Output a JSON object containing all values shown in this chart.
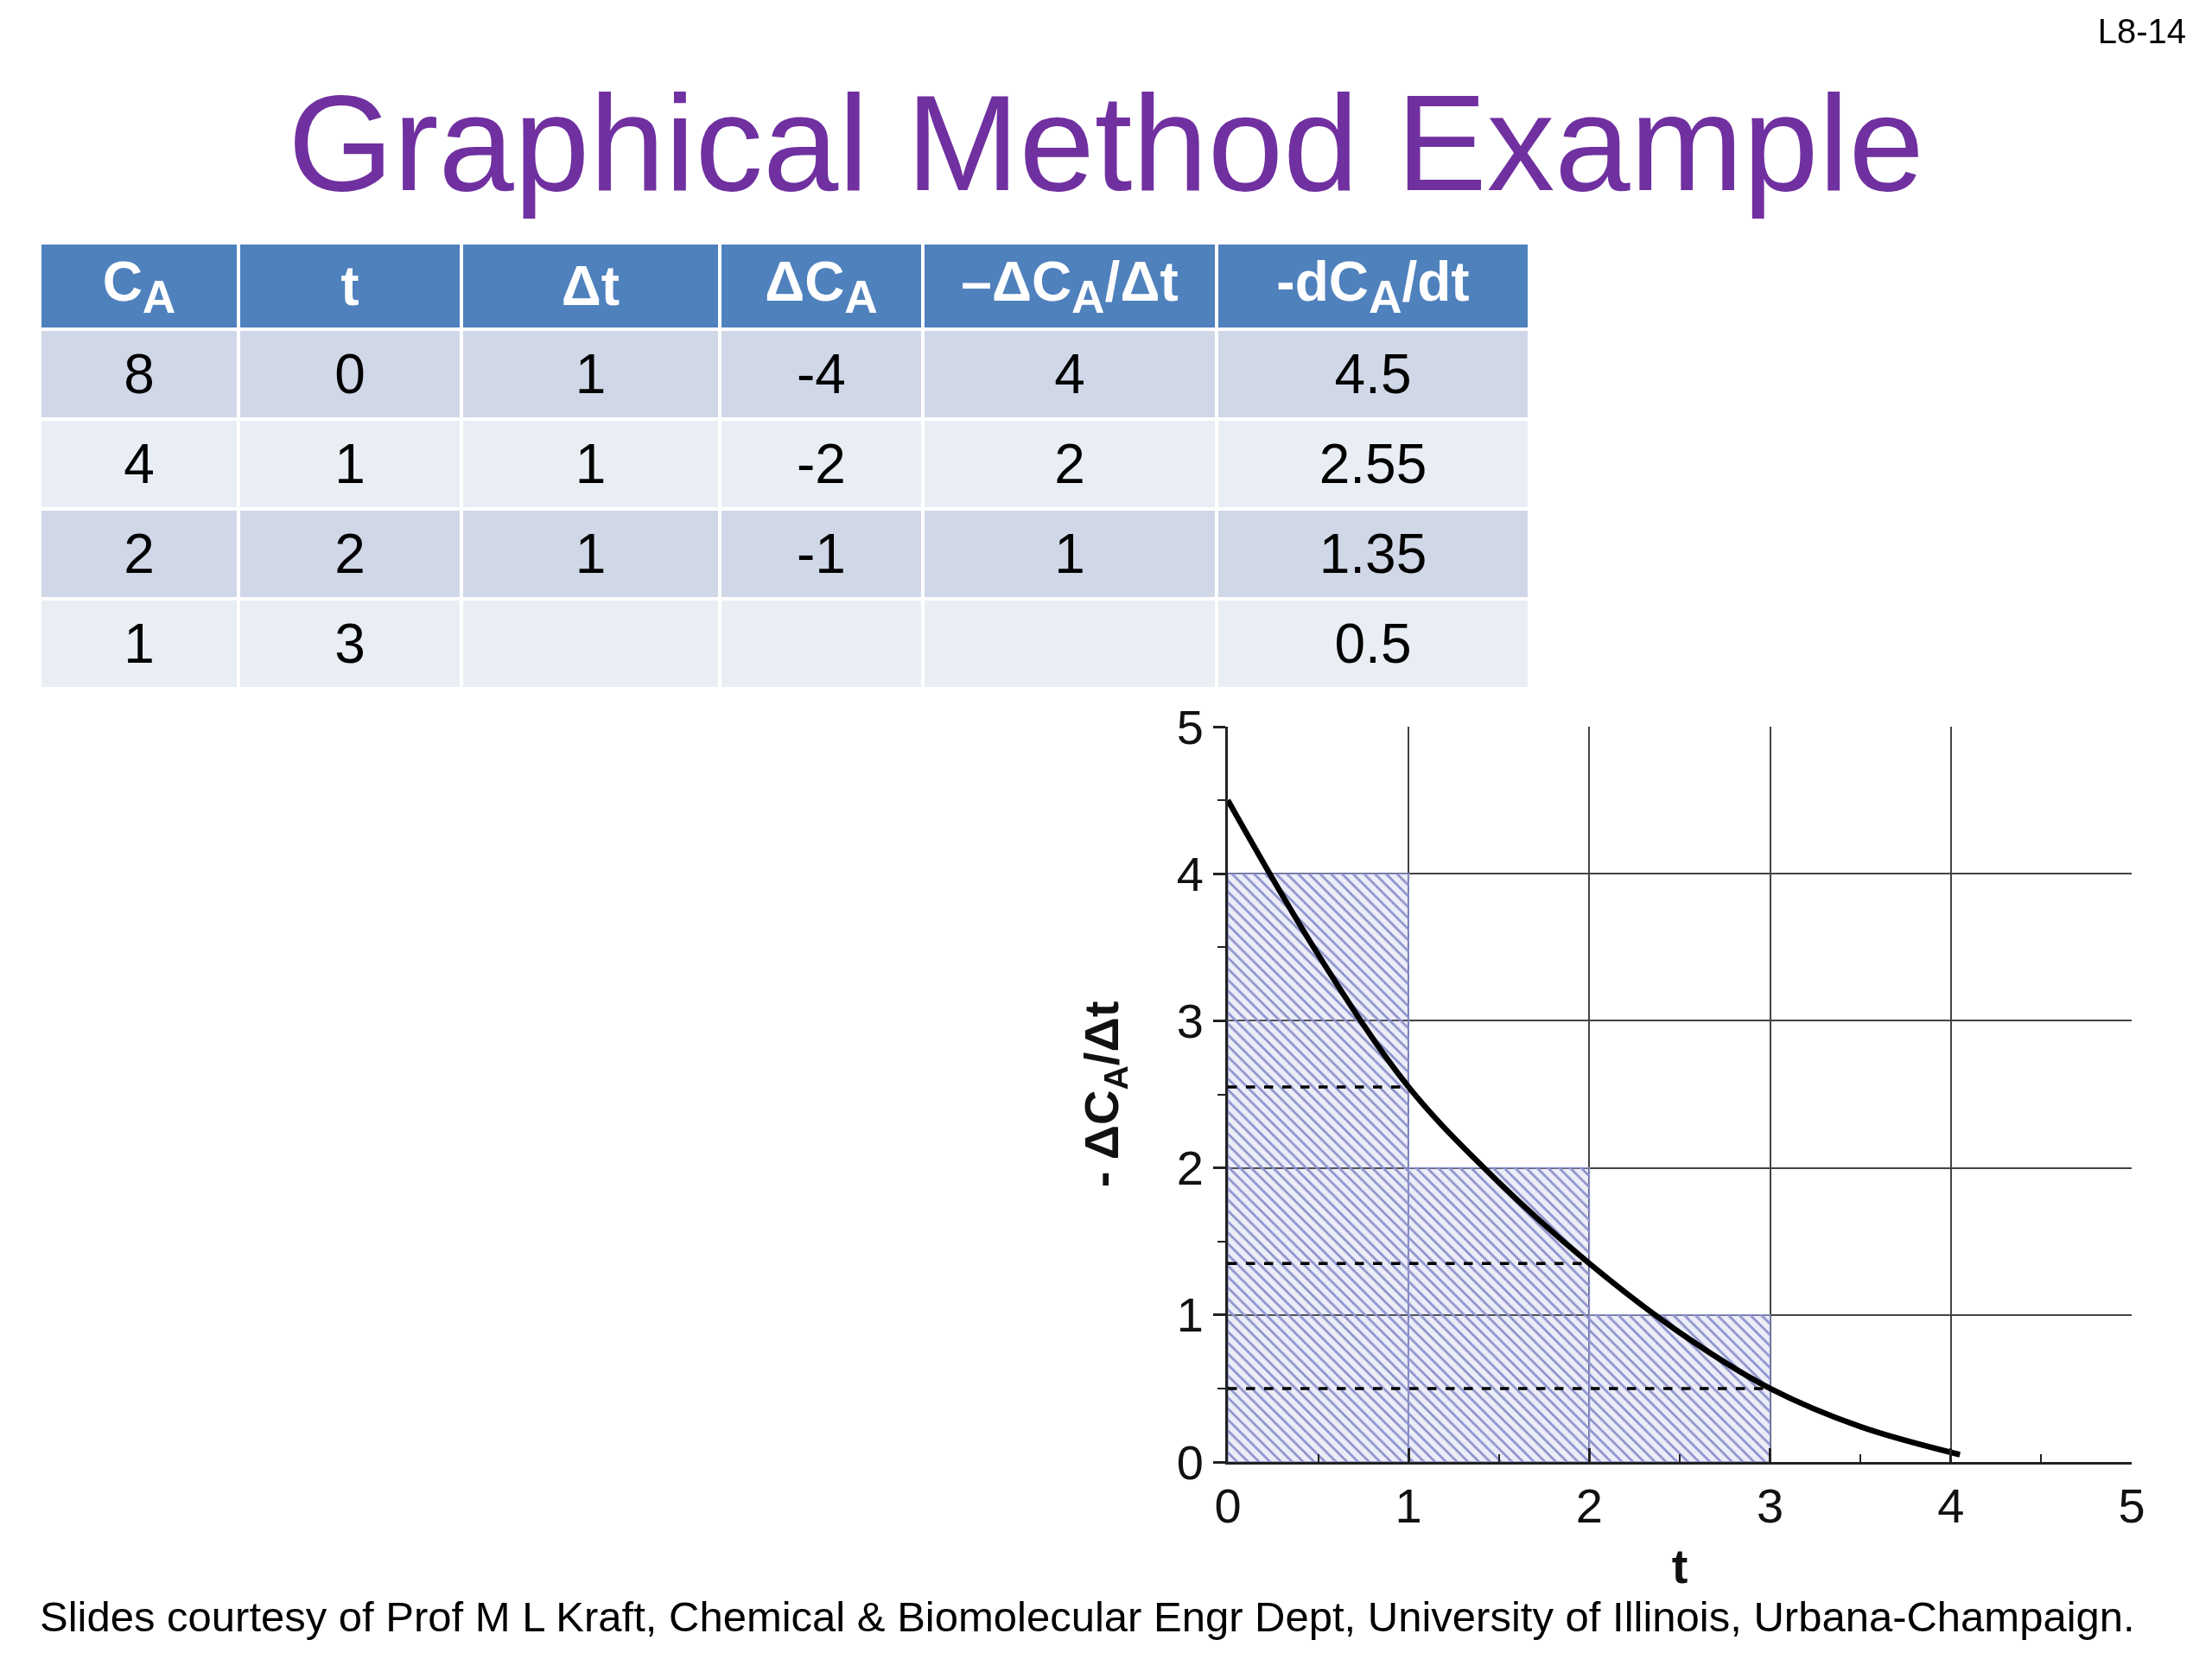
{
  "chart_data": [
    {
      "type": "other",
      "title": "Graphical Method Example",
      "annotations": [
        "L8-14",
        "Slides courtesy of Prof M L Kraft, Chemical & Biomolecular Engr Dept, University of Illinois, Urbana-Champaign."
      ],
      "categories": [
        "C$_{A}$",
        "t",
        "Δt",
        "ΔC$_{A}$",
        "–ΔC$_{A}$/Δt",
        "-dC$_{A}$/dt"
      ],
      "series": [
        {
          "color": "#d0d8e8",
          "values": [
            8,
            0,
            1,
            -4,
            4,
            4.5
          ]
        },
        {
          "color": "#e9edf4",
          "values": [
            4,
            1,
            1,
            -2,
            2,
            2.55
          ]
        },
        {
          "color": "#d0d8e8",
          "values": [
            2,
            2,
            1,
            -1,
            1,
            1.35
          ]
        },
        {
          "color": "#e9edf4",
          "values": [
            1,
            3,
            null,
            null,
            null,
            0.5
          ]
        }
      ],
      "data_labels": true
    },
    {
      "type": "histogram",
      "xlabel": "t",
      "ylabel": "- ΔC$_{A}$/Δt",
      "xlim": [
        0,
        5
      ],
      "ylim": [
        0,
        5
      ],
      "xticks": [
        0,
        {
          "value": 0.5,
          "label": null
        },
        1,
        {
          "value": 1.5,
          "label": null
        },
        2,
        {
          "value": 2.5,
          "label": null
        },
        3,
        {
          "value": 3.5,
          "label": null
        },
        4,
        {
          "value": 4.5,
          "label": null
        },
        5
      ],
      "yticks": [
        0,
        {
          "value": 0.5,
          "label": null
        },
        1,
        {
          "value": 1.5,
          "label": null
        },
        2,
        {
          "value": 2.5,
          "label": null
        },
        3,
        {
          "value": 3.5,
          "label": null
        },
        4,
        {
          "value": 4.5,
          "label": null
        },
        5
      ],
      "grid": true,
      "series": [
        {
          "type": "histogram",
          "color": "#8c92cc",
          "bins": [
            0,
            1,
            2,
            3
          ],
          "values": [
            4,
            2,
            1
          ]
        },
        {
          "type": "line",
          "color": "#000000",
          "x": [
            0,
            0.5,
            1,
            1.5,
            2,
            2.5,
            3,
            3.5,
            4.05
          ],
          "values": [
            4.5,
            3.45,
            2.55,
            1.9,
            1.35,
            0.88,
            0.5,
            0.24,
            0.05
          ]
        },
        {
          "type": "line",
          "color": "#000000",
          "line_style": "dashed",
          "x": [
            0,
            1
          ],
          "values": [
            2.55,
            2.55
          ]
        },
        {
          "type": "line",
          "color": "#000000",
          "line_style": "dashed",
          "x": [
            0,
            2
          ],
          "values": [
            1.35,
            1.35
          ]
        },
        {
          "type": "line",
          "color": "#000000",
          "line_style": "dashed",
          "x": [
            0,
            3
          ],
          "values": [
            0.5,
            0.5
          ]
        }
      ]
    }
  ]
}
